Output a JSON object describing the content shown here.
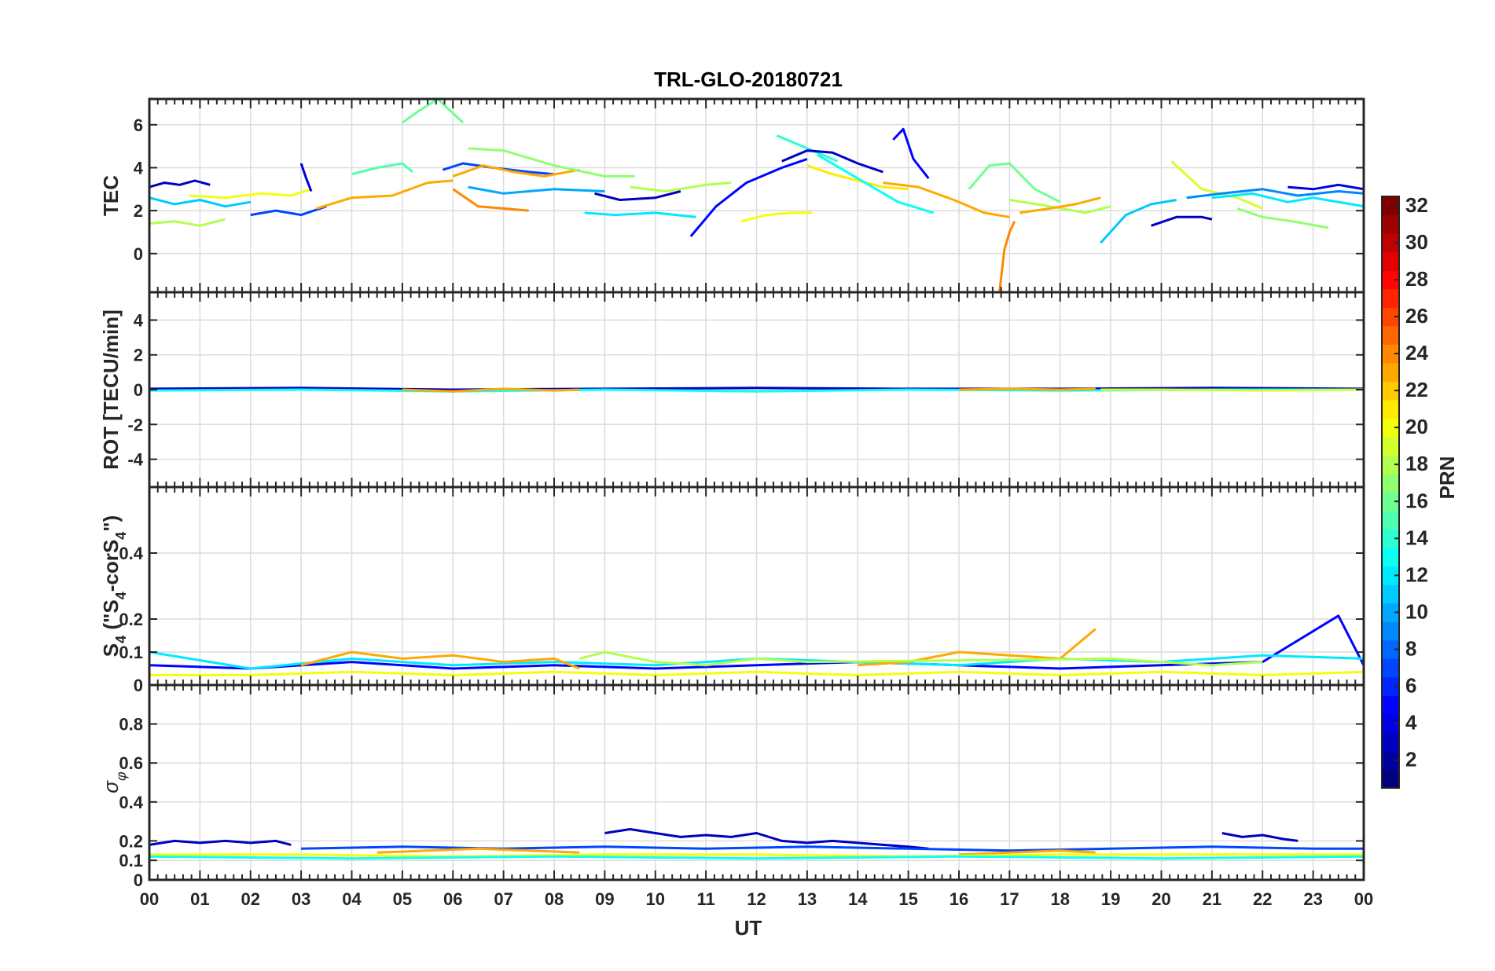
{
  "figure": {
    "title": "TRL-GLO-20180721",
    "xlabel": "UT",
    "x_tick_labels": [
      "00",
      "01",
      "02",
      "03",
      "04",
      "05",
      "06",
      "07",
      "08",
      "09",
      "10",
      "11",
      "12",
      "13",
      "14",
      "15",
      "16",
      "17",
      "18",
      "19",
      "20",
      "21",
      "22",
      "23",
      "00"
    ]
  },
  "colorbar": {
    "label": "PRN",
    "range": [
      1,
      32
    ],
    "tick_values": [
      2,
      4,
      6,
      8,
      10,
      12,
      14,
      16,
      18,
      20,
      22,
      24,
      26,
      28,
      30,
      32
    ],
    "tick_labels": [
      "2",
      "4",
      "6",
      "8",
      "10",
      "12",
      "14",
      "16",
      "18",
      "20",
      "22",
      "24",
      "26",
      "28",
      "30",
      "32"
    ],
    "colormap": "jet"
  },
  "panels": [
    {
      "ylabel": "TEC",
      "ylim": [
        -1.8,
        7.2
      ],
      "y_ticks": [
        0,
        2,
        4,
        6
      ],
      "y_tick_labels": [
        "0",
        "2",
        "4",
        "6"
      ]
    },
    {
      "ylabel": "ROT [TECU/min]",
      "ylim": [
        -5.6,
        5.6
      ],
      "y_ticks": [
        -4,
        -2,
        0,
        2,
        4
      ],
      "y_tick_labels": [
        "-4",
        "-2",
        "0",
        "2",
        "4"
      ]
    },
    {
      "ylabel_parts": [
        "S",
        "4",
        " (\"S",
        "4",
        "-corS",
        "4",
        "\")"
      ],
      "ylim": [
        0,
        0.6
      ],
      "y_ticks": [
        0,
        0.1,
        0.2,
        0.4
      ],
      "y_tick_labels": [
        "0",
        "0.1",
        "0.2",
        "0.4"
      ]
    },
    {
      "ylabel_parts": [
        "σ",
        "φ"
      ],
      "ylim": [
        0,
        1.0
      ],
      "y_ticks": [
        0,
        0.1,
        0.2,
        0.4,
        0.6,
        0.8
      ],
      "y_tick_labels": [
        "0",
        "0.1",
        "0.2",
        "0.4",
        "0.6",
        "0.8"
      ]
    }
  ],
  "chart_data": [
    {
      "type": "line",
      "title": "TRL-GLO-20180721",
      "ylabel": "TEC",
      "x_unit": "UT hour",
      "xlim": [
        0,
        24
      ],
      "ylim": [
        -1.8,
        7.2
      ],
      "series": [
        {
          "prn": 3,
          "x": [
            0.0,
            0.3,
            0.6,
            0.9,
            1.2
          ],
          "y": [
            3.1,
            3.3,
            3.2,
            3.4,
            3.2
          ]
        },
        {
          "prn": 11,
          "x": [
            0.0,
            0.5,
            1.0,
            1.5,
            2.0
          ],
          "y": [
            2.6,
            2.3,
            2.5,
            2.2,
            2.4
          ]
        },
        {
          "prn": 18,
          "x": [
            0.0,
            0.5,
            1.0,
            1.5
          ],
          "y": [
            1.4,
            1.5,
            1.3,
            1.6
          ]
        },
        {
          "prn": 20,
          "x": [
            0.8,
            1.5,
            2.2,
            2.8,
            3.2
          ],
          "y": [
            2.7,
            2.6,
            2.8,
            2.7,
            3.0
          ]
        },
        {
          "prn": 7,
          "x": [
            2.0,
            2.5,
            3.0,
            3.5
          ],
          "y": [
            1.8,
            2.0,
            1.8,
            2.2
          ]
        },
        {
          "prn": 4,
          "x": [
            3.0,
            3.1,
            3.2
          ],
          "y": [
            4.2,
            3.5,
            2.9
          ]
        },
        {
          "prn": 15,
          "x": [
            4.0,
            4.5,
            5.0,
            5.2
          ],
          "y": [
            3.7,
            4.0,
            4.2,
            3.8
          ]
        },
        {
          "prn": 23,
          "x": [
            3.3,
            4.0,
            4.8,
            5.5,
            6.0
          ],
          "y": [
            2.1,
            2.6,
            2.7,
            3.3,
            3.4
          ]
        },
        {
          "prn": 16,
          "x": [
            5.0,
            5.3,
            5.7,
            6.2
          ],
          "y": [
            6.1,
            6.6,
            7.2,
            6.1
          ]
        },
        {
          "prn": 7,
          "x": [
            5.8,
            6.2,
            6.8,
            7.5,
            8.0
          ],
          "y": [
            3.9,
            4.2,
            4.0,
            3.8,
            3.7
          ]
        },
        {
          "prn": 23,
          "x": [
            6.0,
            6.6,
            7.2,
            7.8,
            8.5
          ],
          "y": [
            3.6,
            4.1,
            3.8,
            3.6,
            3.9
          ]
        },
        {
          "prn": 17,
          "x": [
            6.3,
            7.0,
            8.0,
            9.0,
            9.6
          ],
          "y": [
            4.9,
            4.8,
            4.1,
            3.6,
            3.6
          ]
        },
        {
          "prn": 24,
          "x": [
            6.0,
            6.5,
            7.0,
            7.5
          ],
          "y": [
            3.0,
            2.2,
            2.1,
            2.0
          ]
        },
        {
          "prn": 10,
          "x": [
            6.3,
            7.0,
            8.0,
            9.0
          ],
          "y": [
            3.1,
            2.8,
            3.0,
            2.9
          ]
        },
        {
          "prn": 12,
          "x": [
            8.6,
            9.2,
            10.0,
            10.8
          ],
          "y": [
            1.9,
            1.8,
            1.9,
            1.7
          ]
        },
        {
          "prn": 3,
          "x": [
            8.8,
            9.3,
            10.0,
            10.5
          ],
          "y": [
            2.8,
            2.5,
            2.6,
            2.9
          ]
        },
        {
          "prn": 18,
          "x": [
            9.5,
            10.2,
            11.0,
            11.5
          ],
          "y": [
            3.1,
            2.9,
            3.2,
            3.3
          ]
        },
        {
          "prn": 5,
          "x": [
            10.7,
            11.2,
            11.8,
            12.5,
            13.0
          ],
          "y": [
            0.8,
            2.2,
            3.3,
            4.0,
            4.4
          ]
        },
        {
          "prn": 20,
          "x": [
            11.7,
            12.2,
            12.7,
            13.1
          ],
          "y": [
            1.5,
            1.8,
            1.9,
            1.9
          ]
        },
        {
          "prn": 14,
          "x": [
            12.4,
            12.8,
            13.2,
            13.6
          ],
          "y": [
            5.5,
            5.1,
            4.7,
            4.3
          ]
        },
        {
          "prn": 3,
          "x": [
            12.5,
            13.0,
            13.5,
            14.0,
            14.5
          ],
          "y": [
            4.3,
            4.8,
            4.7,
            4.2,
            3.8
          ]
        },
        {
          "prn": 21,
          "x": [
            13.0,
            13.5,
            14.0,
            14.5,
            15.0
          ],
          "y": [
            4.1,
            3.7,
            3.4,
            3.1,
            3.0
          ]
        },
        {
          "prn": 13,
          "x": [
            13.2,
            14.0,
            14.8,
            15.5
          ],
          "y": [
            4.6,
            3.5,
            2.4,
            1.9
          ]
        },
        {
          "prn": 5,
          "x": [
            14.7,
            14.9,
            15.1,
            15.4
          ],
          "y": [
            5.3,
            5.8,
            4.4,
            3.5
          ]
        },
        {
          "prn": 23,
          "x": [
            14.5,
            15.2,
            15.9,
            16.5,
            17.0
          ],
          "y": [
            3.3,
            3.1,
            2.5,
            1.9,
            1.7
          ]
        },
        {
          "prn": 24,
          "x": [
            16.8,
            16.9,
            17.0,
            17.1
          ],
          "y": [
            -1.8,
            0.2,
            1.0,
            1.5
          ]
        },
        {
          "prn": 16,
          "x": [
            16.2,
            16.6,
            17.0,
            17.5,
            18.0
          ],
          "y": [
            3.0,
            4.1,
            4.2,
            3.0,
            2.4
          ]
        },
        {
          "prn": 18,
          "x": [
            17.0,
            17.8,
            18.5,
            19.0
          ],
          "y": [
            2.5,
            2.2,
            1.9,
            2.2
          ]
        },
        {
          "prn": 23,
          "x": [
            17.2,
            17.8,
            18.3,
            18.8
          ],
          "y": [
            1.9,
            2.1,
            2.3,
            2.6
          ]
        },
        {
          "prn": 11,
          "x": [
            18.8,
            19.3,
            19.8,
            20.3
          ],
          "y": [
            0.5,
            1.8,
            2.3,
            2.5
          ]
        },
        {
          "prn": 3,
          "x": [
            19.8,
            20.3,
            20.8,
            21.0
          ],
          "y": [
            1.3,
            1.7,
            1.7,
            1.6
          ]
        },
        {
          "prn": 19,
          "x": [
            20.2,
            20.8,
            21.5,
            22.0
          ],
          "y": [
            4.3,
            3.0,
            2.6,
            2.1
          ]
        },
        {
          "prn": 9,
          "x": [
            20.5,
            21.2,
            22.0,
            22.7,
            23.5,
            24.0
          ],
          "y": [
            2.6,
            2.8,
            3.0,
            2.7,
            2.9,
            2.8
          ]
        },
        {
          "prn": 12,
          "x": [
            21.0,
            21.8,
            22.5,
            23.0,
            24.0
          ],
          "y": [
            2.6,
            2.8,
            2.4,
            2.6,
            2.2
          ]
        },
        {
          "prn": 17,
          "x": [
            21.5,
            22.0,
            22.6,
            23.3
          ],
          "y": [
            2.1,
            1.7,
            1.5,
            1.2
          ]
        },
        {
          "prn": 4,
          "x": [
            22.5,
            23.0,
            23.5,
            24.0
          ],
          "y": [
            3.1,
            3.0,
            3.2,
            3.0
          ]
        }
      ]
    },
    {
      "type": "line",
      "ylabel": "ROT [TECU/min]",
      "x_unit": "UT hour",
      "xlim": [
        0,
        24
      ],
      "ylim": [
        -5.6,
        5.6
      ],
      "series": [
        {
          "prn": 3,
          "x": [
            0,
            3,
            6,
            9,
            12,
            15,
            18,
            21,
            24
          ],
          "y": [
            0.05,
            0.1,
            0.0,
            0.05,
            0.1,
            0.05,
            0.05,
            0.1,
            0.05
          ]
        },
        {
          "prn": 13,
          "x": [
            0,
            3,
            6,
            9,
            12,
            15,
            18,
            21,
            24
          ],
          "y": [
            -0.05,
            0.0,
            -0.1,
            0.0,
            -0.1,
            0.0,
            -0.05,
            0.0,
            0.0
          ]
        },
        {
          "prn": 23,
          "x": [
            5,
            6,
            7,
            8,
            8.5
          ],
          "y": [
            0.0,
            -0.1,
            0.05,
            -0.05,
            0.0
          ]
        },
        {
          "prn": 23,
          "x": [
            16,
            17,
            18,
            18.7
          ],
          "y": [
            0.0,
            0.05,
            0.0,
            0.05
          ]
        },
        {
          "prn": 19,
          "x": [
            18.8,
            20,
            22,
            24
          ],
          "y": [
            0.0,
            0.0,
            -0.05,
            0.0
          ]
        }
      ]
    },
    {
      "type": "line",
      "ylabel": "S4 (\"S4-corS4\")",
      "x_unit": "UT hour",
      "xlim": [
        0,
        24
      ],
      "ylim": [
        0,
        0.6
      ],
      "series": [
        {
          "prn": 5,
          "x": [
            0,
            2,
            4,
            6,
            8,
            10,
            12,
            14,
            16,
            18,
            20,
            22,
            23.5,
            24
          ],
          "y": [
            0.06,
            0.05,
            0.07,
            0.05,
            0.06,
            0.05,
            0.06,
            0.07,
            0.06,
            0.05,
            0.06,
            0.07,
            0.21,
            0.06
          ]
        },
        {
          "prn": 12,
          "x": [
            0,
            2,
            4,
            6,
            8,
            10,
            12,
            14,
            16,
            18,
            20,
            22,
            24
          ],
          "y": [
            0.1,
            0.05,
            0.08,
            0.06,
            0.07,
            0.06,
            0.08,
            0.07,
            0.06,
            0.08,
            0.07,
            0.09,
            0.08
          ]
        },
        {
          "prn": 23,
          "x": [
            3,
            4,
            5,
            6,
            7,
            8,
            8.5
          ],
          "y": [
            0.06,
            0.1,
            0.08,
            0.09,
            0.07,
            0.08,
            0.05
          ]
        },
        {
          "prn": 23,
          "x": [
            14,
            15,
            16,
            17,
            18,
            18.7
          ],
          "y": [
            0.06,
            0.07,
            0.1,
            0.09,
            0.08,
            0.17
          ]
        },
        {
          "prn": 18,
          "x": [
            8.5,
            9,
            10,
            11,
            12,
            13,
            19,
            20,
            21,
            22
          ],
          "y": [
            0.08,
            0.1,
            0.07,
            0.06,
            0.08,
            0.07,
            0.08,
            0.07,
            0.06,
            0.07
          ]
        },
        {
          "prn": 20,
          "x": [
            0,
            2,
            4,
            6,
            8,
            10,
            12,
            14,
            16,
            18,
            20,
            22,
            24
          ],
          "y": [
            0.03,
            0.03,
            0.04,
            0.03,
            0.04,
            0.03,
            0.04,
            0.03,
            0.04,
            0.03,
            0.04,
            0.03,
            0.04
          ]
        }
      ]
    },
    {
      "type": "line",
      "ylabel": "σφ",
      "x_unit": "UT hour",
      "xlim": [
        0,
        24
      ],
      "ylim": [
        0,
        1.0
      ],
      "series": [
        {
          "prn": 3,
          "x": [
            0,
            0.5,
            1,
            1.5,
            2,
            2.5,
            2.8
          ],
          "y": [
            0.18,
            0.2,
            0.19,
            0.2,
            0.19,
            0.2,
            0.18
          ]
        },
        {
          "prn": 3,
          "x": [
            9,
            9.5,
            10,
            10.5,
            11,
            11.5,
            12,
            12.5,
            13,
            13.5,
            14,
            14.5,
            15,
            15.4
          ],
          "y": [
            0.24,
            0.26,
            0.24,
            0.22,
            0.23,
            0.22,
            0.24,
            0.2,
            0.19,
            0.2,
            0.19,
            0.18,
            0.17,
            0.16
          ]
        },
        {
          "prn": 3,
          "x": [
            21.2,
            21.6,
            22,
            22.4,
            22.7
          ],
          "y": [
            0.24,
            0.22,
            0.23,
            0.21,
            0.2
          ]
        },
        {
          "prn": 7,
          "x": [
            3,
            5,
            7,
            9,
            11,
            13,
            15,
            17,
            19,
            21,
            23,
            24
          ],
          "y": [
            0.16,
            0.17,
            0.16,
            0.17,
            0.16,
            0.17,
            0.16,
            0.15,
            0.16,
            0.17,
            0.16,
            0.16
          ]
        },
        {
          "prn": 23,
          "x": [
            4.5,
            5.5,
            6.5,
            7.5,
            8.5
          ],
          "y": [
            0.14,
            0.15,
            0.16,
            0.15,
            0.14
          ]
        },
        {
          "prn": 23,
          "x": [
            16,
            17,
            18,
            18.7
          ],
          "y": [
            0.13,
            0.14,
            0.15,
            0.14
          ]
        },
        {
          "prn": 20,
          "x": [
            0,
            3,
            6,
            9,
            12,
            15,
            18,
            21,
            24
          ],
          "y": [
            0.13,
            0.13,
            0.12,
            0.13,
            0.13,
            0.12,
            0.13,
            0.13,
            0.13
          ]
        },
        {
          "prn": 13,
          "x": [
            0,
            4,
            8,
            12,
            16,
            20,
            24
          ],
          "y": [
            0.12,
            0.11,
            0.12,
            0.11,
            0.12,
            0.11,
            0.12
          ]
        }
      ]
    }
  ]
}
